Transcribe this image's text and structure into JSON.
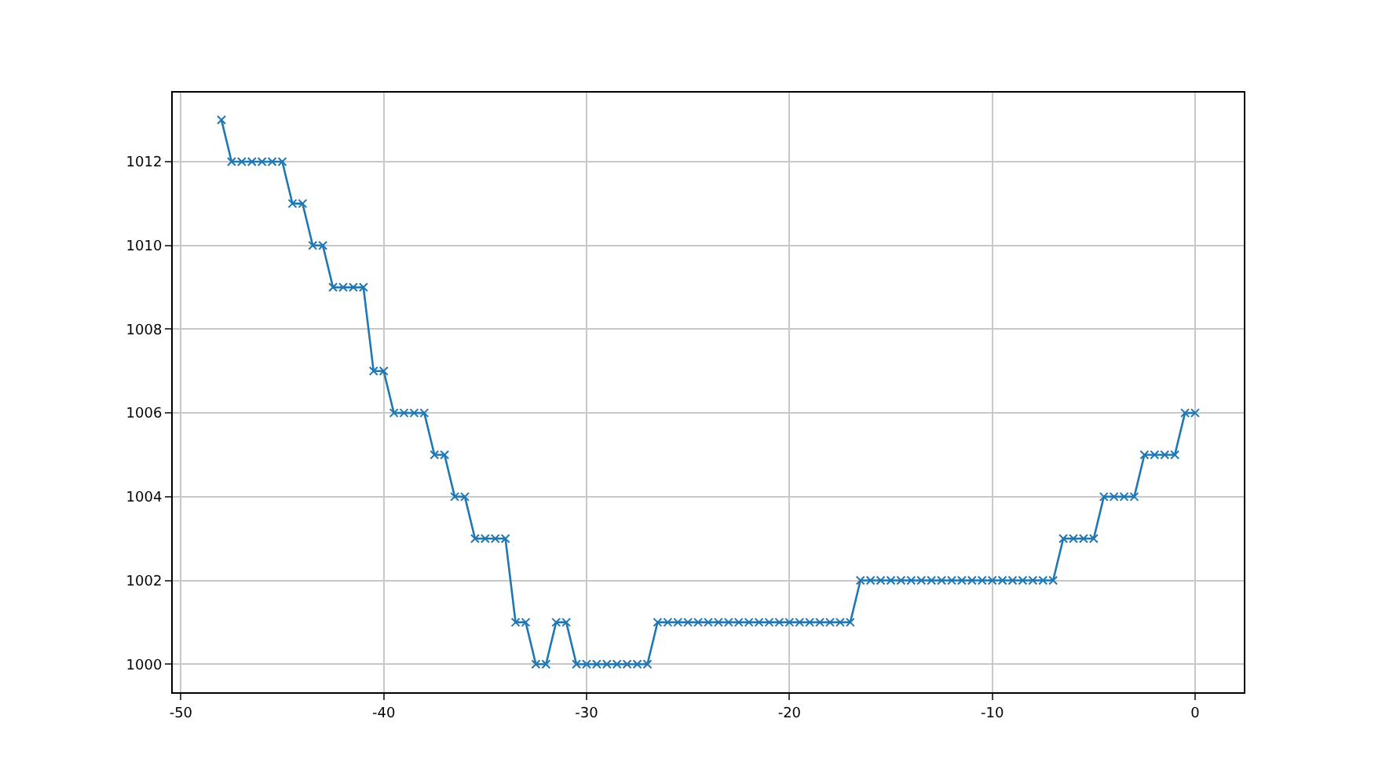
{
  "chart_data": {
    "type": "line",
    "x": [
      -48,
      -47.5,
      -47,
      -46.5,
      -46,
      -45.5,
      -45,
      -44.5,
      -44,
      -43.5,
      -43,
      -42.5,
      -42,
      -41.5,
      -41,
      -40.5,
      -40,
      -39.5,
      -39,
      -38.5,
      -38,
      -37.5,
      -37,
      -36.5,
      -36,
      -35.5,
      -35,
      -34.5,
      -34,
      -33.5,
      -33,
      -32.5,
      -32,
      -31.5,
      -31,
      -30.5,
      -30,
      -29.5,
      -29,
      -28.5,
      -28,
      -27.5,
      -27,
      -26.5,
      -26,
      -25.5,
      -25,
      -24.5,
      -24,
      -23.5,
      -23,
      -22.5,
      -22,
      -21.5,
      -21,
      -20.5,
      -20,
      -19.5,
      -19,
      -18.5,
      -18,
      -17.5,
      -17,
      -16.5,
      -16,
      -15.5,
      -15,
      -14.5,
      -14,
      -13.5,
      -13,
      -12.5,
      -12,
      -11.5,
      -11,
      -10.5,
      -10,
      -9.5,
      -9,
      -8.5,
      -8,
      -7.5,
      -7,
      -6.5,
      -6,
      -5.5,
      -5,
      -4.5,
      -4,
      -3.5,
      -3,
      -2.5,
      -2,
      -1.5,
      -1,
      -0.5,
      0
    ],
    "series": [
      {
        "color": "#1f77b4",
        "values": [
          1013,
          1012,
          1012,
          1012,
          1012,
          1012,
          1012,
          1011,
          1011,
          1010,
          1010,
          1009,
          1009,
          1009,
          1009,
          1007,
          1007,
          1006,
          1006,
          1006,
          1006,
          1005,
          1005,
          1004,
          1004,
          1003,
          1003,
          1003,
          1003,
          1001,
          1001,
          1000,
          1000,
          1001,
          1001,
          1000,
          1000,
          1000,
          1000,
          1000,
          1000,
          1000,
          1000,
          1001,
          1001,
          1001,
          1001,
          1001,
          1001,
          1001,
          1001,
          1001,
          1001,
          1001,
          1001,
          1001,
          1001,
          1001,
          1001,
          1001,
          1001,
          1001,
          1001,
          1002,
          1002,
          1002,
          1002,
          1002,
          1002,
          1002,
          1002,
          1002,
          1002,
          1002,
          1002,
          1002,
          1002,
          1002,
          1002,
          1002,
          1002,
          1002,
          1002,
          1003,
          1003,
          1003,
          1003,
          1004,
          1004,
          1004,
          1004,
          1005,
          1005,
          1005,
          1005,
          1006,
          1006
        ]
      }
    ],
    "xlim": [
      -50.4,
      2.4
    ],
    "ylim": [
      999.33,
      1013.65
    ],
    "xticks": [
      -50,
      -40,
      -30,
      -20,
      -10,
      0
    ],
    "yticks": [
      1000,
      1002,
      1004,
      1006,
      1008,
      1010,
      1012
    ],
    "grid": true,
    "marker": "cross",
    "line_style": "solid",
    "legend": false
  }
}
